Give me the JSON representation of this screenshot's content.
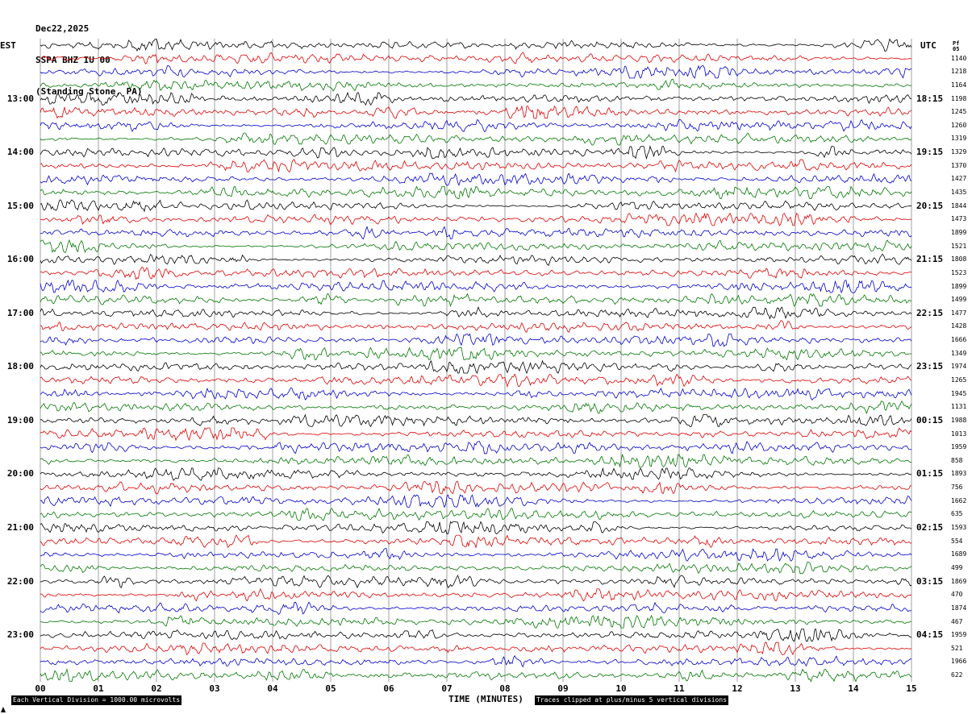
{
  "header": {
    "date": "Dec22,2025",
    "station": "SSPA BHZ IU 00",
    "location": "(Standing Stone, PA)"
  },
  "axis": {
    "left_label": "EST",
    "right_label": "UTC",
    "corner_label": "Pf05",
    "x_title": "TIME (MINUTES)",
    "x_ticks": [
      "00",
      "01",
      "02",
      "03",
      "04",
      "05",
      "06",
      "07",
      "08",
      "09",
      "10",
      "11",
      "12",
      "13",
      "14",
      "15"
    ]
  },
  "footer": {
    "scale_note": "Each Vertical Division = 1000.00 microvolts",
    "clip_note": "Traces clipped at plus/minus 5 vertical divisions"
  },
  "chart_data": {
    "type": "line",
    "variant": "helicorder-seismogram",
    "title": "SSPA BHZ IU 00 (Standing Stone, PA) Dec22,2025",
    "xlabel": "TIME (MINUTES)",
    "x_range_minutes": [
      0,
      15
    ],
    "rows": 48,
    "minutes_per_row": 15,
    "row_start_time_est": "12:00",
    "trace_colors": [
      "#000000",
      "#dd0000",
      "#0000cc",
      "#007700"
    ],
    "label_start_row": 4,
    "label_step": 4,
    "left_times": [
      "13:00",
      "14:00",
      "15:00",
      "16:00",
      "17:00",
      "18:00",
      "19:00",
      "20:00",
      "21:00",
      "22:00",
      "23:00"
    ],
    "right_times": [
      "18:15",
      "19:15",
      "20:15",
      "21:15",
      "22:15",
      "23:15",
      "00:15",
      "01:15",
      "02:15",
      "03:15",
      "04:15"
    ],
    "peak_start_row": 1,
    "row_peak_values": [
      1140,
      1218,
      1164,
      1198,
      1245,
      1260,
      1319,
      1329,
      1370,
      1427,
      1435,
      1844,
      1473,
      1899,
      1521,
      1808,
      1523,
      1899,
      1499,
      1477,
      1428,
      1666,
      1349,
      1974,
      1265,
      1945,
      1131,
      1988,
      1013,
      1959,
      858,
      1893,
      756,
      1662,
      635,
      1593,
      554,
      1689,
      499,
      1869,
      470,
      1874,
      467,
      1959,
      521,
      1966,
      622
    ],
    "scale_microvolts_per_division": 1000.0,
    "clip_divisions": 5,
    "waveform_description": "continuous background microseism noise on all 48 fifteen-minute traces, small amplitude bursts, no large events, traces colored in repeating black/red/blue/green order"
  }
}
